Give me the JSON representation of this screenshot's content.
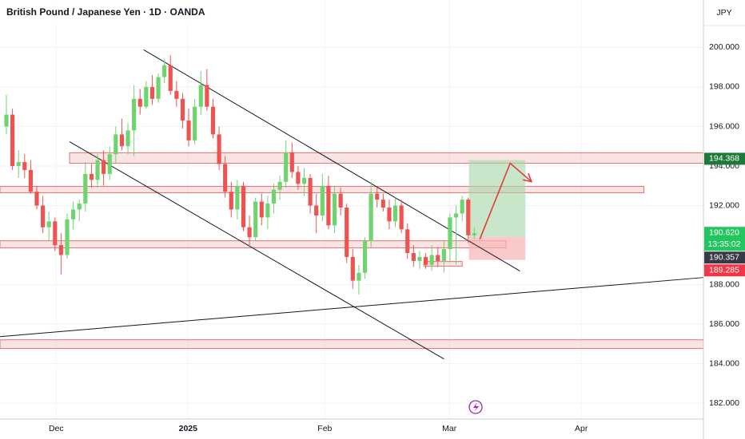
{
  "header": {
    "title": "British Pound / Japanese Yen · 1D · OANDA",
    "currency": "JPY"
  },
  "chart_data": {
    "type": "candlestick",
    "colors": {
      "up": "#6fd36f",
      "down": "#ef5350"
    },
    "xlim": [
      -1.05,
      114.7
    ],
    "xticks": [
      {
        "value": 8.2,
        "label": "Dec"
      },
      {
        "value": 29.9,
        "label": "2025"
      },
      {
        "value": 52.4,
        "label": "Feb"
      },
      {
        "value": 72.9,
        "label": "Mar"
      },
      {
        "value": 94.6,
        "label": "Apr"
      }
    ],
    "ylim": [
      181.2,
      202.4
    ],
    "yticks": [
      {
        "value": 200,
        "label": "200.000"
      },
      {
        "value": 198,
        "label": "198.000"
      },
      {
        "value": 196,
        "label": "196.000"
      },
      {
        "value": 194,
        "label": "194.000"
      },
      {
        "value": 192,
        "label": "192.000"
      },
      {
        "value": 188,
        "label": "188.000"
      },
      {
        "value": 186,
        "label": "186.000"
      },
      {
        "value": 184,
        "label": "184.000"
      },
      {
        "value": 182,
        "label": "182.000"
      }
    ],
    "grid": true,
    "ohlc": [
      [
        196.0,
        197.6,
        195.6,
        196.6
      ],
      [
        196.6,
        196.9,
        193.8,
        194.0
      ],
      [
        194.0,
        194.8,
        193.4,
        194.2
      ],
      [
        194.2,
        194.6,
        193.4,
        193.8
      ],
      [
        193.8,
        194.3,
        192.6,
        192.7
      ],
      [
        192.7,
        193.0,
        191.8,
        192.0
      ],
      [
        192.0,
        192.5,
        190.6,
        190.9
      ],
      [
        190.9,
        191.7,
        190.2,
        191.2
      ],
      [
        191.2,
        191.4,
        189.7,
        190.0
      ],
      [
        190.0,
        190.6,
        188.5,
        189.5
      ],
      [
        189.5,
        191.6,
        189.3,
        191.3
      ],
      [
        191.3,
        192.2,
        190.8,
        191.8
      ],
      [
        191.8,
        192.3,
        191.2,
        192.1
      ],
      [
        192.1,
        194.2,
        191.7,
        193.6
      ],
      [
        193.6,
        194.1,
        192.9,
        193.3
      ],
      [
        193.3,
        194.6,
        192.9,
        194.3
      ],
      [
        194.3,
        194.8,
        193.0,
        193.6
      ],
      [
        193.6,
        195.0,
        193.3,
        194.6
      ],
      [
        194.6,
        196.0,
        194.1,
        195.6
      ],
      [
        195.6,
        196.4,
        194.8,
        195.0
      ],
      [
        195.0,
        196.2,
        194.6,
        195.8
      ],
      [
        195.8,
        198.1,
        194.5,
        197.4
      ],
      [
        197.4,
        197.9,
        196.6,
        197.0
      ],
      [
        197.0,
        198.3,
        196.9,
        198.0
      ],
      [
        198.0,
        198.6,
        197.1,
        197.4
      ],
      [
        197.4,
        198.7,
        197.2,
        198.5
      ],
      [
        198.5,
        199.4,
        198.2,
        199.1
      ],
      [
        199.1,
        199.6,
        197.6,
        197.8
      ],
      [
        197.8,
        198.3,
        197.0,
        197.4
      ],
      [
        197.4,
        197.7,
        195.9,
        196.3
      ],
      [
        196.3,
        196.9,
        195.0,
        195.3
      ],
      [
        195.3,
        197.4,
        195.1,
        197.0
      ],
      [
        197.0,
        198.8,
        196.6,
        198.1
      ],
      [
        198.1,
        198.9,
        196.8,
        197.0
      ],
      [
        197.0,
        197.4,
        195.4,
        195.6
      ],
      [
        195.6,
        196.0,
        193.8,
        194.1
      ],
      [
        194.1,
        194.5,
        192.4,
        192.7
      ],
      [
        192.7,
        193.2,
        191.4,
        191.8
      ],
      [
        191.8,
        193.3,
        191.3,
        193.0
      ],
      [
        193.0,
        193.2,
        190.7,
        190.9
      ],
      [
        190.9,
        191.5,
        190.0,
        190.4
      ],
      [
        190.4,
        192.4,
        190.2,
        192.2
      ],
      [
        192.2,
        192.6,
        191.0,
        191.4
      ],
      [
        191.4,
        192.5,
        190.8,
        192.1
      ],
      [
        192.1,
        193.1,
        191.6,
        192.8
      ],
      [
        192.8,
        193.5,
        192.3,
        193.2
      ],
      [
        193.2,
        195.3,
        192.9,
        194.7
      ],
      [
        194.7,
        195.2,
        193.4,
        193.7
      ],
      [
        193.7,
        194.0,
        192.8,
        193.1
      ],
      [
        193.1,
        193.9,
        192.5,
        193.4
      ],
      [
        193.4,
        193.6,
        191.6,
        192.0
      ],
      [
        192.0,
        192.6,
        190.6,
        191.5
      ],
      [
        191.5,
        193.6,
        191.2,
        193.0
      ],
      [
        193.0,
        193.5,
        190.8,
        191.0
      ],
      [
        191.0,
        193.0,
        190.6,
        192.6
      ],
      [
        192.6,
        192.9,
        191.5,
        191.9
      ],
      [
        191.9,
        192.1,
        189.1,
        189.4
      ],
      [
        189.4,
        189.8,
        187.8,
        188.2
      ],
      [
        188.2,
        189.0,
        187.5,
        188.6
      ],
      [
        188.6,
        190.4,
        188.3,
        190.2
      ],
      [
        190.2,
        193.2,
        189.9,
        192.6
      ],
      [
        192.6,
        192.9,
        191.9,
        192.3
      ],
      [
        192.3,
        192.6,
        191.7,
        191.9
      ],
      [
        191.9,
        192.3,
        190.8,
        191.2
      ],
      [
        191.2,
        192.4,
        190.9,
        192.0
      ],
      [
        192.0,
        192.3,
        190.6,
        190.8
      ],
      [
        190.8,
        191.1,
        189.3,
        189.6
      ],
      [
        189.6,
        190.0,
        188.9,
        189.2
      ],
      [
        189.2,
        189.7,
        188.8,
        189.4
      ],
      [
        189.4,
        189.6,
        188.8,
        189.0
      ],
      [
        189.0,
        190.0,
        188.7,
        189.5
      ],
      [
        189.5,
        189.9,
        188.9,
        189.2
      ],
      [
        189.2,
        190.2,
        188.6,
        189.8
      ],
      [
        189.8,
        191.6,
        189.2,
        191.4
      ],
      [
        191.4,
        192.0,
        189.0,
        191.6
      ],
      [
        191.6,
        192.5,
        191.2,
        192.3
      ],
      [
        192.3,
        192.4,
        190.1,
        190.5
      ],
      [
        190.5,
        190.9,
        190.3,
        190.6
      ]
    ],
    "zones": [
      {
        "x": [
          10.4,
          114.7
        ],
        "y": [
          194.14,
          194.67
        ],
        "color": "#e57373"
      },
      {
        "x": [
          -1.05,
          104.9
        ],
        "y": [
          192.65,
          192.97
        ],
        "color": "#e57373"
      },
      {
        "x": [
          -1.05,
          82.2
        ],
        "y": [
          189.86,
          190.22
        ],
        "color": "#e57373"
      },
      {
        "x": [
          -1.05,
          114.7
        ],
        "y": [
          184.77,
          185.21
        ],
        "color": "#e57373"
      },
      {
        "x": [
          68.7,
          75.0
        ],
        "y": [
          188.93,
          189.17
        ],
        "color": "#e57373"
      }
    ],
    "trend_lines": [
      {
        "x": [
          22.6,
          84.5
        ],
        "y": [
          199.88,
          188.69
        ]
      },
      {
        "x": [
          10.4,
          72.0
        ],
        "y": [
          195.23,
          184.24
        ]
      },
      {
        "x": [
          -1.05,
          114.7
        ],
        "y": [
          185.37,
          188.36
        ]
      }
    ],
    "position": {
      "x": [
        76.1,
        85.4
      ],
      "target": 194.3,
      "entry": 190.42,
      "stop": 189.25,
      "colors": {
        "profit": "#a5d6a7",
        "loss": "#f8b4b4"
      }
    },
    "projection": {
      "x": [
        77.9,
        82.9,
        86.4
      ],
      "y": [
        190.3,
        194.14,
        193.21
      ],
      "color": "#e53935"
    },
    "price_labels": [
      {
        "value": 194.368,
        "label": "194.368",
        "color": "#1b7a3a"
      },
      {
        "value": 190.62,
        "label": "190.620",
        "countdown": "13:35:02",
        "color": "#22c55e"
      },
      {
        "value": 190.357,
        "label": "190.357",
        "color": "#363a45"
      },
      {
        "value": 189.285,
        "label": "189.285",
        "color": "#f23645"
      }
    ]
  }
}
